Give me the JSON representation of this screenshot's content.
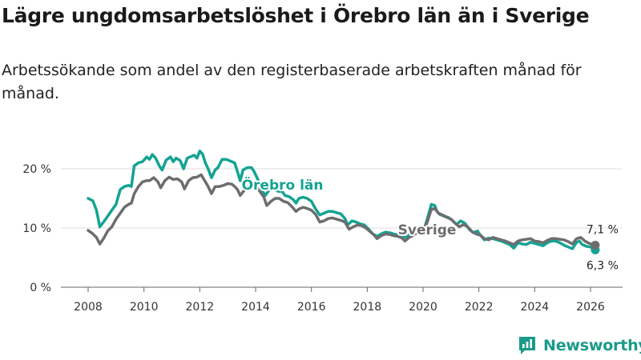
{
  "title": "Lägre ungdomsarbetslöshet i Örebro län än i Sverige",
  "subtitle": "Arbetssökande som andel av den registerbaserade arbetskraften månad för månad.",
  "brand": {
    "name": "Newsworthy",
    "icon": "newsworthy-logo-icon"
  },
  "colors": {
    "orebro": "#13a393",
    "sverige": "#6d6d70",
    "grid": "#dddddd",
    "axis": "#666666"
  },
  "chart_data": {
    "type": "line",
    "title": "Lägre ungdomsarbetslöshet i Örebro län än i Sverige",
    "xlabel": "",
    "ylabel": "",
    "xlim": [
      2007.5,
      2026.6
    ],
    "ylim": [
      0,
      20
    ],
    "grid": true,
    "y_ticks": [
      0,
      10,
      20
    ],
    "y_tick_labels": [
      "0 %",
      "10 %",
      "20 %"
    ],
    "x_ticks": [
      2008,
      2010,
      2012,
      2014,
      2016,
      2018,
      2020,
      2022,
      2024,
      2026
    ],
    "x_tick_labels": [
      "2008",
      "2010",
      "2012",
      "2014",
      "2016",
      "2018",
      "2020",
      "2022",
      "2024",
      "2026"
    ],
    "series": [
      {
        "name": "Örebro län",
        "label": "Örebro län",
        "color": "#13a393",
        "end_label": "6,3 %",
        "points": [
          [
            2008.0,
            15
          ],
          [
            2008.17,
            14.6
          ],
          [
            2008.3,
            13
          ],
          [
            2008.42,
            10.2
          ],
          [
            2008.55,
            11
          ],
          [
            2008.7,
            12
          ],
          [
            2008.85,
            13
          ],
          [
            2009.0,
            14
          ],
          [
            2009.15,
            16.5
          ],
          [
            2009.3,
            17
          ],
          [
            2009.45,
            17.2
          ],
          [
            2009.55,
            17
          ],
          [
            2009.65,
            20.5
          ],
          [
            2009.8,
            21
          ],
          [
            2009.95,
            21.2
          ],
          [
            2010.1,
            22
          ],
          [
            2010.2,
            21.6
          ],
          [
            2010.3,
            22.4
          ],
          [
            2010.42,
            21.8
          ],
          [
            2010.55,
            20.5
          ],
          [
            2010.65,
            19.8
          ],
          [
            2010.8,
            21.5
          ],
          [
            2010.95,
            22
          ],
          [
            2011.05,
            21.2
          ],
          [
            2011.15,
            21.8
          ],
          [
            2011.3,
            21.4
          ],
          [
            2011.42,
            20
          ],
          [
            2011.55,
            21.8
          ],
          [
            2011.65,
            22
          ],
          [
            2011.8,
            22.3
          ],
          [
            2011.9,
            21.8
          ],
          [
            2012.0,
            23
          ],
          [
            2012.1,
            22.5
          ],
          [
            2012.2,
            21
          ],
          [
            2012.3,
            20
          ],
          [
            2012.42,
            18.5
          ],
          [
            2012.55,
            19.8
          ],
          [
            2012.65,
            20.2
          ],
          [
            2012.8,
            21.6
          ],
          [
            2012.95,
            21.6
          ],
          [
            2013.1,
            21.3
          ],
          [
            2013.25,
            21
          ],
          [
            2013.35,
            19.5
          ],
          [
            2013.45,
            18
          ],
          [
            2013.55,
            19.8
          ],
          [
            2013.7,
            20.2
          ],
          [
            2013.85,
            20.2
          ],
          [
            2013.95,
            19.5
          ],
          [
            2014.1,
            18
          ],
          [
            2014.25,
            16.2
          ],
          [
            2014.35,
            15.5
          ],
          [
            2014.5,
            16.5
          ],
          [
            2014.65,
            16.7
          ],
          [
            2014.8,
            16.2
          ],
          [
            2014.95,
            16.2
          ],
          [
            2015.05,
            15.5
          ],
          [
            2015.2,
            15.3
          ],
          [
            2015.35,
            14.8
          ],
          [
            2015.45,
            14.2
          ],
          [
            2015.55,
            15
          ],
          [
            2015.7,
            15.2
          ],
          [
            2015.85,
            15
          ],
          [
            2016.0,
            14.5
          ],
          [
            2016.15,
            13.2
          ],
          [
            2016.3,
            12.2
          ],
          [
            2016.45,
            12.5
          ],
          [
            2016.6,
            12.8
          ],
          [
            2016.75,
            12.8
          ],
          [
            2016.9,
            12.6
          ],
          [
            2017.05,
            12.4
          ],
          [
            2017.2,
            11.6
          ],
          [
            2017.3,
            10.5
          ],
          [
            2017.45,
            11.2
          ],
          [
            2017.6,
            11
          ],
          [
            2017.75,
            10.7
          ],
          [
            2017.9,
            10.5
          ],
          [
            2018.05,
            9.8
          ],
          [
            2018.2,
            9
          ],
          [
            2018.35,
            8.6
          ],
          [
            2018.5,
            9
          ],
          [
            2018.65,
            9.3
          ],
          [
            2018.8,
            9.2
          ],
          [
            2018.95,
            9
          ],
          [
            2019.1,
            8.8
          ],
          [
            2019.25,
            8.6
          ],
          [
            2019.4,
            8.4
          ],
          [
            2019.55,
            9
          ],
          [
            2019.7,
            9.3
          ],
          [
            2019.85,
            9.5
          ],
          [
            2019.95,
            9.8
          ],
          [
            2020.05,
            10
          ],
          [
            2020.15,
            11.5
          ],
          [
            2020.3,
            14
          ],
          [
            2020.42,
            13.8
          ],
          [
            2020.5,
            12.8
          ],
          [
            2020.6,
            12.3
          ],
          [
            2020.75,
            12
          ],
          [
            2020.9,
            11.8
          ],
          [
            2021.05,
            11.3
          ],
          [
            2021.2,
            10.6
          ],
          [
            2021.35,
            11.2
          ],
          [
            2021.5,
            10.8
          ],
          [
            2021.65,
            9.8
          ],
          [
            2021.8,
            9.2
          ],
          [
            2021.95,
            9.5
          ],
          [
            2022.05,
            8.8
          ],
          [
            2022.2,
            8
          ],
          [
            2022.35,
            8.3
          ],
          [
            2022.5,
            8.2
          ],
          [
            2022.65,
            8
          ],
          [
            2022.8,
            7.8
          ],
          [
            2022.95,
            7.5
          ],
          [
            2023.1,
            7.2
          ],
          [
            2023.25,
            6.6
          ],
          [
            2023.4,
            7.5
          ],
          [
            2023.55,
            7.3
          ],
          [
            2023.7,
            7.2
          ],
          [
            2023.85,
            7.6
          ],
          [
            2024.0,
            7.4
          ],
          [
            2024.15,
            7.2
          ],
          [
            2024.3,
            7
          ],
          [
            2024.45,
            7.5
          ],
          [
            2024.6,
            7.8
          ],
          [
            2024.75,
            7.8
          ],
          [
            2024.9,
            7.5
          ],
          [
            2025.05,
            7.1
          ],
          [
            2025.2,
            6.8
          ],
          [
            2025.35,
            6.5
          ],
          [
            2025.5,
            7.6
          ],
          [
            2025.6,
            7.8
          ],
          [
            2025.7,
            7.2
          ],
          [
            2025.85,
            6.9
          ],
          [
            2026.0,
            6.8
          ],
          [
            2026.17,
            6.3
          ]
        ]
      },
      {
        "name": "Sverige",
        "label": "Sverige",
        "color": "#6d6d70",
        "end_label": "7,1 %",
        "points": [
          [
            2008.0,
            9.6
          ],
          [
            2008.15,
            9.1
          ],
          [
            2008.3,
            8.4
          ],
          [
            2008.42,
            7.3
          ],
          [
            2008.55,
            8.2
          ],
          [
            2008.7,
            9.5
          ],
          [
            2008.85,
            10.2
          ],
          [
            2009.0,
            11.5
          ],
          [
            2009.15,
            12.5
          ],
          [
            2009.3,
            13.5
          ],
          [
            2009.45,
            14
          ],
          [
            2009.55,
            14.2
          ],
          [
            2009.65,
            15.8
          ],
          [
            2009.8,
            17
          ],
          [
            2009.95,
            17.8
          ],
          [
            2010.1,
            18
          ],
          [
            2010.2,
            18
          ],
          [
            2010.35,
            18.5
          ],
          [
            2010.5,
            17.8
          ],
          [
            2010.6,
            16.8
          ],
          [
            2010.75,
            18
          ],
          [
            2010.9,
            18.6
          ],
          [
            2011.05,
            18.2
          ],
          [
            2011.2,
            18.3
          ],
          [
            2011.35,
            17.8
          ],
          [
            2011.45,
            16.6
          ],
          [
            2011.6,
            18
          ],
          [
            2011.75,
            18.5
          ],
          [
            2011.9,
            18.6
          ],
          [
            2012.05,
            19
          ],
          [
            2012.2,
            17.8
          ],
          [
            2012.3,
            17
          ],
          [
            2012.42,
            15.8
          ],
          [
            2012.55,
            17
          ],
          [
            2012.7,
            17
          ],
          [
            2012.85,
            17.2
          ],
          [
            2013.0,
            17.5
          ],
          [
            2013.15,
            17.4
          ],
          [
            2013.25,
            17
          ],
          [
            2013.35,
            16.5
          ],
          [
            2013.45,
            15.5
          ],
          [
            2013.6,
            16.4
          ],
          [
            2013.75,
            17
          ],
          [
            2013.9,
            17.2
          ],
          [
            2014.05,
            16.8
          ],
          [
            2014.15,
            16.2
          ],
          [
            2014.3,
            15.2
          ],
          [
            2014.4,
            13.8
          ],
          [
            2014.55,
            14.5
          ],
          [
            2014.7,
            15
          ],
          [
            2014.85,
            15
          ],
          [
            2015.0,
            14.5
          ],
          [
            2015.15,
            14.3
          ],
          [
            2015.3,
            13.6
          ],
          [
            2015.45,
            12.8
          ],
          [
            2015.55,
            13.2
          ],
          [
            2015.7,
            13.5
          ],
          [
            2015.85,
            13.3
          ],
          [
            2016.0,
            13
          ],
          [
            2016.15,
            12.3
          ],
          [
            2016.3,
            11
          ],
          [
            2016.45,
            11.2
          ],
          [
            2016.6,
            11.6
          ],
          [
            2016.75,
            11.7
          ],
          [
            2016.9,
            11.5
          ],
          [
            2017.05,
            11.3
          ],
          [
            2017.2,
            11
          ],
          [
            2017.35,
            9.8
          ],
          [
            2017.5,
            10.2
          ],
          [
            2017.65,
            10.5
          ],
          [
            2017.8,
            10.4
          ],
          [
            2017.95,
            10
          ],
          [
            2018.1,
            9.4
          ],
          [
            2018.25,
            8.8
          ],
          [
            2018.35,
            8.2
          ],
          [
            2018.5,
            8.7
          ],
          [
            2018.65,
            9
          ],
          [
            2018.8,
            8.9
          ],
          [
            2018.95,
            8.7
          ],
          [
            2019.1,
            8.6
          ],
          [
            2019.25,
            8.3
          ],
          [
            2019.35,
            7.8
          ],
          [
            2019.5,
            8.4
          ],
          [
            2019.65,
            8.8
          ],
          [
            2019.8,
            9.2
          ],
          [
            2019.95,
            9.5
          ],
          [
            2020.05,
            9.8
          ],
          [
            2020.15,
            11
          ],
          [
            2020.3,
            13.2
          ],
          [
            2020.42,
            13.3
          ],
          [
            2020.55,
            12.5
          ],
          [
            2020.7,
            12.2
          ],
          [
            2020.85,
            11.8
          ],
          [
            2021.0,
            11.5
          ],
          [
            2021.15,
            10.8
          ],
          [
            2021.3,
            10.2
          ],
          [
            2021.45,
            10.6
          ],
          [
            2021.6,
            10.2
          ],
          [
            2021.75,
            9.4
          ],
          [
            2021.9,
            9
          ],
          [
            2022.05,
            8.8
          ],
          [
            2022.2,
            8.2
          ],
          [
            2022.35,
            8
          ],
          [
            2022.5,
            8.4
          ],
          [
            2022.65,
            8.2
          ],
          [
            2022.8,
            8
          ],
          [
            2022.95,
            7.8
          ],
          [
            2023.1,
            7.5
          ],
          [
            2023.25,
            7.2
          ],
          [
            2023.4,
            7.8
          ],
          [
            2023.55,
            8
          ],
          [
            2023.7,
            8.1
          ],
          [
            2023.85,
            8.2
          ],
          [
            2024.0,
            7.8
          ],
          [
            2024.15,
            7.7
          ],
          [
            2024.3,
            7.5
          ],
          [
            2024.45,
            7.9
          ],
          [
            2024.6,
            8.2
          ],
          [
            2024.75,
            8.2
          ],
          [
            2024.9,
            8.1
          ],
          [
            2025.05,
            8
          ],
          [
            2025.2,
            7.7
          ],
          [
            2025.35,
            7.3
          ],
          [
            2025.5,
            8.2
          ],
          [
            2025.65,
            8.4
          ],
          [
            2025.8,
            7.8
          ],
          [
            2025.95,
            7.4
          ],
          [
            2026.17,
            7.1
          ]
        ]
      }
    ]
  }
}
